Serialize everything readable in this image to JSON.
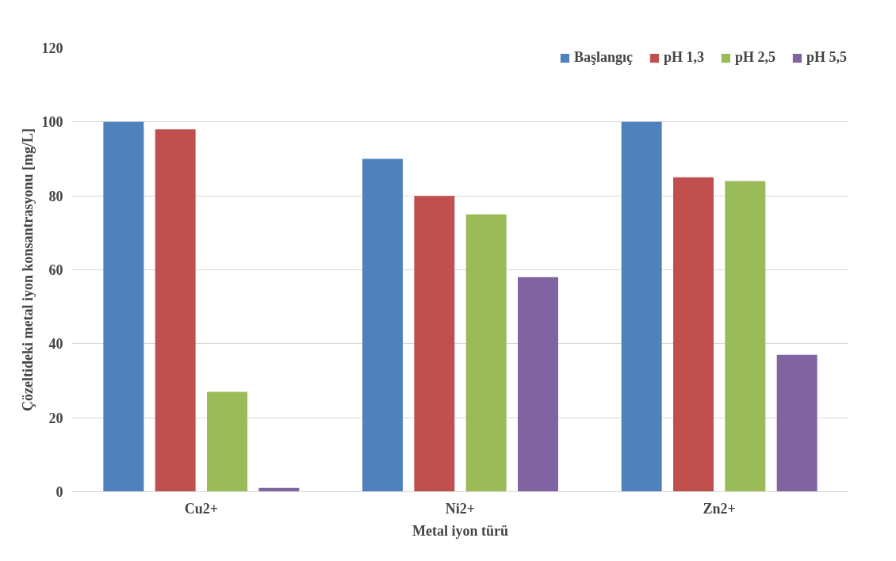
{
  "chart_data": {
    "type": "bar",
    "xlabel": "Metal iyon türü",
    "ylabel": "Çözeltideki metal iyon konsantrasyonu [mg/L]",
    "categories": [
      "Cu2+",
      "Ni2+",
      "Zn2+"
    ],
    "series": [
      {
        "name": "Başlangıç",
        "color": "#4f81bd",
        "values": [
          100,
          90,
          100
        ]
      },
      {
        "name": "pH 1,3",
        "color": "#c0504d",
        "values": [
          98,
          80,
          85
        ]
      },
      {
        "name": "pH 2,5",
        "color": "#9bbb59",
        "values": [
          27,
          75,
          84
        ]
      },
      {
        "name": "pH 5,5",
        "color": "#8064a2",
        "values": [
          1,
          58,
          37
        ]
      }
    ],
    "ylim": [
      0,
      120
    ],
    "yticks": [
      0,
      20,
      40,
      60,
      80,
      100,
      120
    ],
    "grid": "y",
    "legend": "top right"
  }
}
